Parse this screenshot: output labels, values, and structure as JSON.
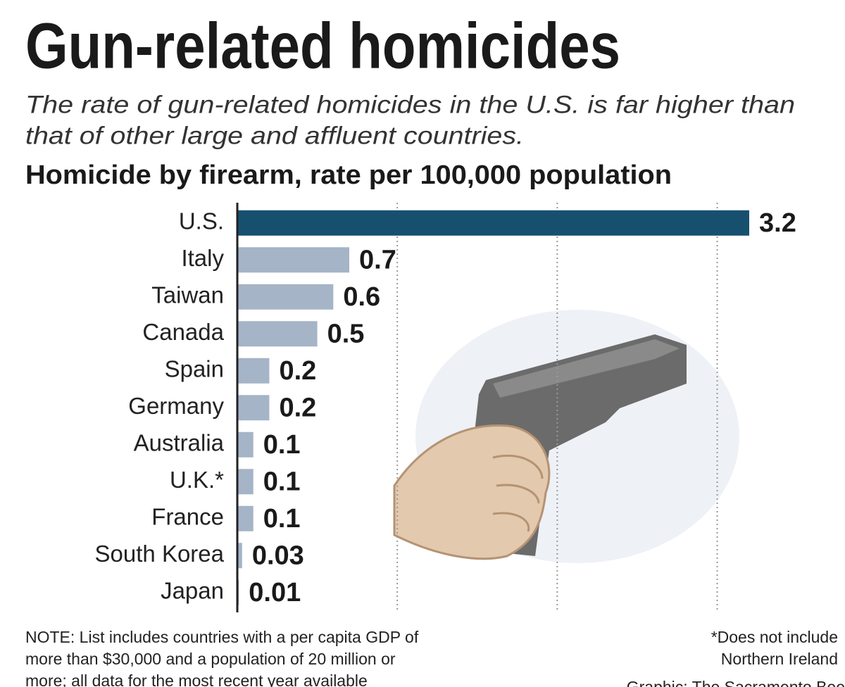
{
  "chart_data": {
    "type": "bar",
    "title": "Gun-related homicides",
    "subtitle": [
      "The rate of gun-related homicides in the U.S. is far higher than",
      "that of other large and affluent countries."
    ],
    "chart_title": "Homicide by firearm, rate per 100,000 population",
    "categories": [
      "U.S.",
      "Italy",
      "Taiwan",
      "Canada",
      "Spain",
      "Germany",
      "Australia",
      "U.K.*",
      "France",
      "South Korea",
      "Japan"
    ],
    "values": [
      3.2,
      0.7,
      0.6,
      0.5,
      0.2,
      0.2,
      0.1,
      0.1,
      0.1,
      0.03,
      0.01
    ],
    "colors": [
      "#17506f",
      "#a5b4c7",
      "#a5b4c7",
      "#a5b4c7",
      "#a5b4c7",
      "#a5b4c7",
      "#a5b4c7",
      "#a5b4c7",
      "#a5b4c7",
      "#a5b4c7",
      "#a5b4c7"
    ],
    "xlim": [
      0,
      3.2
    ],
    "xticks": [
      1,
      2,
      3
    ],
    "grid": true,
    "note": [
      "NOTE: List includes countries with a per capita GDP of",
      "more than $30,000 and a population of 20 million or",
      "more; all data for the most recent year available"
    ],
    "footnote": [
      "*Does not include",
      "Northern Ireland"
    ],
    "credit": "Graphic: The Sacramento Bee"
  }
}
